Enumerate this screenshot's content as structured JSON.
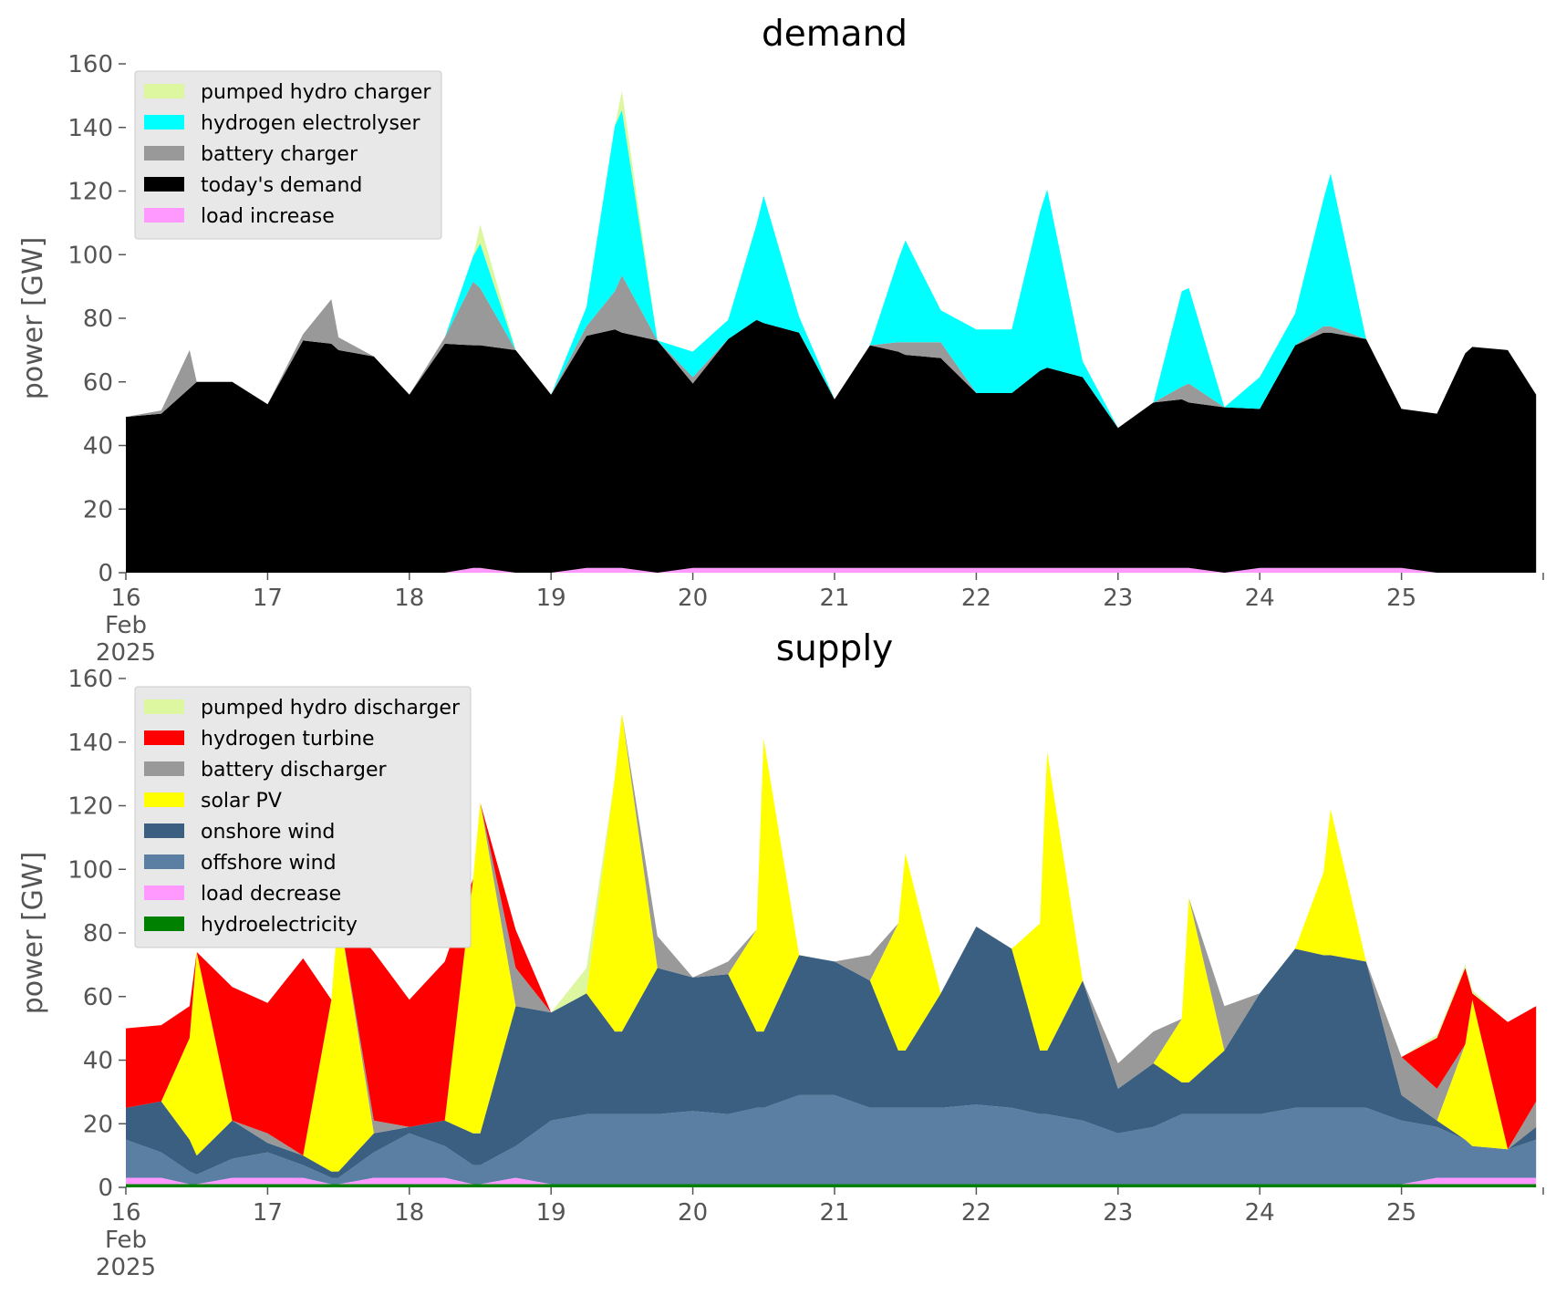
{
  "chart_data": [
    {
      "type": "area",
      "stacked": true,
      "title": "demand",
      "ylabel": "power [GW]",
      "ylim": [
        0,
        160
      ],
      "yticks": [
        "0",
        "20",
        "40",
        "60",
        "80",
        "100",
        "120",
        "140",
        "160"
      ],
      "xlim": [
        0,
        10
      ],
      "xticks": [
        {
          "x": 0,
          "lines": [
            "16",
            "Feb",
            "2025"
          ]
        },
        {
          "x": 1,
          "lines": [
            "17"
          ]
        },
        {
          "x": 2,
          "lines": [
            "18"
          ]
        },
        {
          "x": 3,
          "lines": [
            "19"
          ]
        },
        {
          "x": 4,
          "lines": [
            "20"
          ]
        },
        {
          "x": 5,
          "lines": [
            "21"
          ]
        },
        {
          "x": 6,
          "lines": [
            "22"
          ]
        },
        {
          "x": 7,
          "lines": [
            "23"
          ]
        },
        {
          "x": 8,
          "lines": [
            "24"
          ]
        },
        {
          "x": 9,
          "lines": [
            "25"
          ]
        }
      ],
      "legend_position": "top-left",
      "legend_order": [
        "pumped hydro charger",
        "hydrogen electrolyser",
        "battery charger",
        "today's demand",
        "load increase"
      ],
      "x": [
        0,
        0.25,
        0.45,
        0.5,
        0.75,
        1.0,
        1.25,
        1.45,
        1.5,
        1.75,
        2.0,
        2.25,
        2.45,
        2.5,
        2.75,
        3.0,
        3.25,
        3.45,
        3.5,
        3.75,
        4.0,
        4.25,
        4.45,
        4.5,
        4.75,
        5.0,
        5.25,
        5.45,
        5.5,
        5.75,
        6.0,
        6.25,
        6.45,
        6.5,
        6.75,
        7.0,
        7.25,
        7.45,
        7.5,
        7.75,
        8.0,
        8.25,
        8.45,
        8.5,
        8.75,
        9.0,
        9.25,
        9.45,
        9.5,
        9.75,
        9.95
      ],
      "series": [
        {
          "name": "load increase",
          "color": "#ff99ff",
          "values": [
            0,
            0,
            0,
            0,
            0,
            0,
            0,
            0,
            0,
            0,
            0,
            0,
            1.5,
            1.5,
            0,
            0,
            1.5,
            1.5,
            1.5,
            0,
            1.5,
            1.5,
            1.5,
            1.5,
            1.5,
            1.5,
            1.5,
            1.5,
            1.5,
            1.5,
            1.5,
            1.5,
            1.5,
            1.5,
            1.5,
            1.5,
            1.5,
            1.5,
            1.5,
            0,
            1.5,
            1.5,
            1.5,
            1.5,
            1.5,
            1.5,
            0,
            0,
            0,
            0,
            0
          ]
        },
        {
          "name": "today's demand",
          "color": "#000000",
          "values": [
            49,
            50,
            58,
            60,
            60,
            53,
            73,
            72,
            70,
            68,
            56,
            72,
            70,
            70,
            70,
            56,
            73,
            75,
            74,
            73,
            58,
            72,
            78,
            77,
            74,
            53,
            70,
            68,
            67,
            66,
            55,
            55,
            62,
            63,
            60,
            44,
            52,
            53,
            52,
            52,
            50,
            70,
            74,
            74,
            72,
            50,
            50,
            69,
            71,
            70,
            56
          ]
        },
        {
          "name": "battery charger",
          "color": "#999999",
          "values": [
            0,
            1,
            12,
            0,
            0,
            0,
            2,
            14,
            4,
            0,
            0,
            2,
            20,
            18,
            0,
            0,
            3,
            12,
            18,
            0,
            2,
            0,
            0,
            0,
            0,
            0,
            0,
            3,
            4,
            5,
            0,
            0,
            0,
            0,
            0,
            0,
            0,
            4,
            6,
            0,
            0,
            0,
            2,
            2,
            0,
            0,
            0,
            0,
            0,
            0,
            0
          ]
        },
        {
          "name": "hydrogen electrolyser",
          "color": "#00ffff",
          "values": [
            0,
            0,
            0,
            0,
            0,
            0,
            0,
            0,
            0,
            0,
            0,
            0,
            8,
            14,
            0,
            0,
            6,
            52,
            52,
            0,
            8,
            6,
            30,
            40,
            5,
            0,
            0,
            26,
            32,
            10,
            20,
            20,
            50,
            56,
            5,
            0,
            0,
            30,
            30,
            0,
            10,
            10,
            40,
            48,
            0,
            0,
            0,
            0,
            0,
            0,
            0
          ]
        },
        {
          "name": "pumped hydro charger",
          "color": "#ddf7a0",
          "values": [
            0,
            0,
            0,
            0,
            0,
            0,
            0,
            0,
            0,
            0,
            0,
            0,
            0,
            6,
            0,
            0,
            0,
            0,
            6,
            0,
            0,
            0,
            0,
            0,
            0,
            0,
            0,
            0,
            0,
            0,
            0,
            0,
            0,
            0,
            0,
            0,
            0,
            0,
            0,
            0,
            0,
            0,
            0,
            0,
            0,
            0,
            0,
            0,
            0,
            0,
            0
          ]
        }
      ]
    },
    {
      "type": "area",
      "stacked": true,
      "title": "supply",
      "ylabel": "power [GW]",
      "ylim": [
        0,
        160
      ],
      "yticks": [
        "0",
        "20",
        "40",
        "60",
        "80",
        "100",
        "120",
        "140",
        "160"
      ],
      "xlim": [
        0,
        10
      ],
      "xticks": [
        {
          "x": 0,
          "lines": [
            "16",
            "Feb",
            "2025"
          ]
        },
        {
          "x": 1,
          "lines": [
            "17"
          ]
        },
        {
          "x": 2,
          "lines": [
            "18"
          ]
        },
        {
          "x": 3,
          "lines": [
            "19"
          ]
        },
        {
          "x": 4,
          "lines": [
            "20"
          ]
        },
        {
          "x": 5,
          "lines": [
            "21"
          ]
        },
        {
          "x": 6,
          "lines": [
            "22"
          ]
        },
        {
          "x": 7,
          "lines": [
            "23"
          ]
        },
        {
          "x": 8,
          "lines": [
            "24"
          ]
        },
        {
          "x": 9,
          "lines": [
            "25"
          ]
        }
      ],
      "legend_position": "top-left",
      "legend_order": [
        "pumped hydro discharger",
        "hydrogen turbine",
        "battery discharger",
        "solar PV",
        "onshore wind",
        "offshore wind",
        "load decrease",
        "hydroelectricity"
      ],
      "x": [
        0,
        0.25,
        0.45,
        0.5,
        0.75,
        1.0,
        1.25,
        1.45,
        1.5,
        1.75,
        2.0,
        2.25,
        2.45,
        2.5,
        2.75,
        3.0,
        3.25,
        3.45,
        3.5,
        3.75,
        4.0,
        4.25,
        4.45,
        4.5,
        4.75,
        5.0,
        5.25,
        5.45,
        5.5,
        5.75,
        6.0,
        6.25,
        6.45,
        6.5,
        6.75,
        7.0,
        7.25,
        7.45,
        7.5,
        7.75,
        8.0,
        8.25,
        8.45,
        8.5,
        8.75,
        9.0,
        9.25,
        9.45,
        9.5,
        9.75,
        9.95
      ],
      "series": [
        {
          "name": "hydroelectricity",
          "color": "#008000",
          "values": [
            1,
            1,
            1,
            1,
            1,
            1,
            1,
            1,
            1,
            1,
            1,
            1,
            1,
            1,
            1,
            1,
            1,
            1,
            1,
            1,
            1,
            1,
            1,
            1,
            1,
            1,
            1,
            1,
            1,
            1,
            1,
            1,
            1,
            1,
            1,
            1,
            1,
            1,
            1,
            1,
            1,
            1,
            1,
            1,
            1,
            1,
            1,
            1,
            1,
            1,
            1
          ]
        },
        {
          "name": "load decrease",
          "color": "#ff99ff",
          "values": [
            2,
            2,
            0,
            0,
            2,
            2,
            2,
            0,
            0,
            2,
            2,
            2,
            0,
            0,
            2,
            0,
            0,
            0,
            0,
            0,
            0,
            0,
            0,
            0,
            0,
            0,
            0,
            0,
            0,
            0,
            0,
            0,
            0,
            0,
            0,
            0,
            0,
            0,
            0,
            0,
            0,
            0,
            0,
            0,
            0,
            0,
            2,
            2,
            2,
            2,
            2
          ]
        },
        {
          "name": "offshore wind",
          "color": "#5a7fa3",
          "values": [
            12,
            8,
            4,
            3,
            6,
            8,
            4,
            2,
            2,
            8,
            14,
            10,
            6,
            6,
            10,
            20,
            22,
            22,
            22,
            22,
            23,
            22,
            24,
            24,
            28,
            28,
            24,
            24,
            24,
            24,
            25,
            24,
            22,
            22,
            20,
            16,
            18,
            22,
            22,
            22,
            22,
            24,
            24,
            24,
            24,
            20,
            16,
            12,
            10,
            9,
            12
          ]
        },
        {
          "name": "onshore wind",
          "color": "#3a5f80",
          "values": [
            10,
            16,
            10,
            6,
            12,
            3,
            3,
            2,
            2,
            6,
            2,
            8,
            10,
            10,
            44,
            34,
            38,
            26,
            26,
            46,
            42,
            44,
            24,
            24,
            44,
            42,
            40,
            18,
            18,
            36,
            56,
            50,
            20,
            20,
            44,
            14,
            20,
            10,
            10,
            20,
            38,
            50,
            48,
            48,
            46,
            8,
            2,
            0,
            0,
            0,
            4
          ]
        },
        {
          "name": "solar PV",
          "color": "#ffff00",
          "values": [
            0,
            0,
            32,
            64,
            0,
            0,
            0,
            54,
            82,
            0,
            0,
            0,
            80,
            104,
            0,
            0,
            0,
            80,
            100,
            0,
            0,
            0,
            32,
            92,
            0,
            0,
            0,
            40,
            62,
            0,
            0,
            0,
            40,
            94,
            0,
            0,
            0,
            20,
            58,
            0,
            0,
            0,
            26,
            46,
            0,
            0,
            0,
            30,
            46,
            0,
            0
          ]
        },
        {
          "name": "battery discharger",
          "color": "#999999",
          "values": [
            0,
            0,
            0,
            0,
            0,
            3,
            0,
            0,
            0,
            4,
            0,
            0,
            0,
            0,
            12,
            0,
            0,
            0,
            0,
            10,
            0,
            4,
            0,
            0,
            0,
            0,
            8,
            0,
            0,
            0,
            0,
            0,
            0,
            0,
            0,
            8,
            10,
            0,
            0,
            14,
            0,
            0,
            0,
            0,
            0,
            12,
            10,
            0,
            0,
            0,
            8
          ]
        },
        {
          "name": "hydrogen turbine",
          "color": "#ff0000",
          "values": [
            25,
            24,
            10,
            0,
            42,
            41,
            62,
            0,
            0,
            53,
            40,
            50,
            0,
            0,
            12,
            0,
            0,
            0,
            0,
            0,
            0,
            0,
            0,
            0,
            0,
            0,
            0,
            0,
            0,
            0,
            0,
            0,
            0,
            0,
            0,
            0,
            0,
            0,
            0,
            0,
            0,
            0,
            0,
            0,
            0,
            0,
            16,
            24,
            2,
            40,
            30
          ]
        },
        {
          "name": "pumped hydro discharger",
          "color": "#ddf7a0",
          "values": [
            0,
            0,
            0,
            0,
            0,
            0,
            0,
            0,
            0,
            0,
            0,
            0,
            0,
            0,
            0,
            0,
            8,
            0,
            0,
            0,
            0,
            0,
            0,
            0,
            0,
            0,
            0,
            0,
            0,
            0,
            0,
            0,
            0,
            0,
            0,
            0,
            0,
            0,
            0,
            0,
            0,
            0,
            0,
            0,
            0,
            0,
            1,
            1,
            1,
            0,
            0
          ]
        }
      ]
    }
  ]
}
